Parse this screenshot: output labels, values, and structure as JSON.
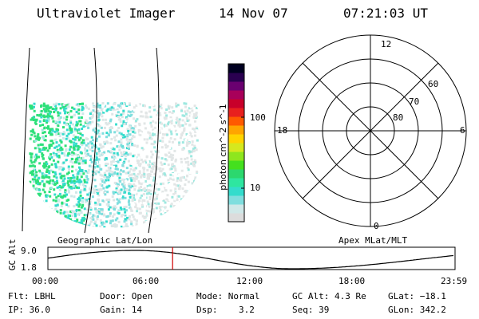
{
  "header": {
    "title": "Ultraviolet Imager",
    "date": "14 Nov 07",
    "time": "07:21:03 UT"
  },
  "colorbar": {
    "label": "photon cm^-2 s^-1",
    "ticks": [
      "100",
      "10"
    ],
    "colors": [
      "#dcdcdc",
      "#cfe8e8",
      "#7fdede",
      "#33dccc",
      "#2ee6a0",
      "#2cd86e",
      "#44e01e",
      "#8ee61e",
      "#d6e81e",
      "#ffd400",
      "#ffa500",
      "#ff5a00",
      "#e8201e",
      "#c8002a",
      "#a8005a",
      "#6a0070",
      "#2a0050",
      "#000020"
    ]
  },
  "polar": {
    "mlt_labels": [
      "12",
      "18",
      "6",
      "0"
    ],
    "lat_labels": [
      "60",
      "70",
      "80"
    ]
  },
  "timeline": {
    "left_label": "Geographic Lat/Lon",
    "right_label": "Apex MLat/MLT",
    "ylabel": "GC Alt",
    "y_ticks": [
      "9.0",
      "1.8"
    ],
    "x_ticks": [
      "00:00",
      "06:00",
      "12:00",
      "18:00",
      "23:59"
    ],
    "current_hours": 7.35,
    "cursor_color": "#d00000"
  },
  "status": {
    "filter": "Flt: LBHL",
    "ip": "IP: 36.0",
    "door": "Door: Open",
    "gain": "Gain: 14",
    "mode": "Mode: Normal",
    "dsp": "Dsp:    3.2",
    "gc_alt": "GC Alt: 4.3 Re",
    "seq": "Seq: 39",
    "glat": "GLat: −18.1",
    "glon": "GLon: 342.2"
  }
}
